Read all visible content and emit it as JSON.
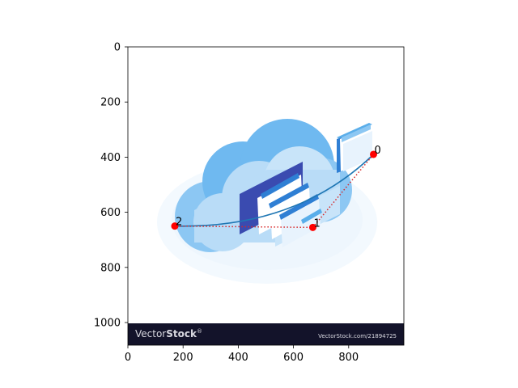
{
  "axes": {
    "x_ticks": [
      "0",
      "200",
      "400",
      "600",
      "800"
    ],
    "y_ticks": [
      "0",
      "200",
      "400",
      "600",
      "800",
      "1000"
    ]
  },
  "points": [
    {
      "label": "0",
      "x": 890,
      "y": 390
    },
    {
      "label": "1",
      "x": 670,
      "y": 655
    },
    {
      "label": "2",
      "x": 170,
      "y": 650
    }
  ],
  "watermark": {
    "brand_prefix": "Vector",
    "brand_suffix": "Stock",
    "registered": "®",
    "url": "VectorStock.com/21894725"
  },
  "colors": {
    "point": "#ff0000",
    "dotted_path": "#d62728",
    "curve": "#1f77b4",
    "cloud_light": "#b9dcf7",
    "cloud_mid": "#8cc7f3",
    "cloud_dark": "#5aaeea",
    "folder_blue": "#2f7fd4",
    "folder_dark": "#3a4bb0",
    "banner": "#13132a"
  }
}
